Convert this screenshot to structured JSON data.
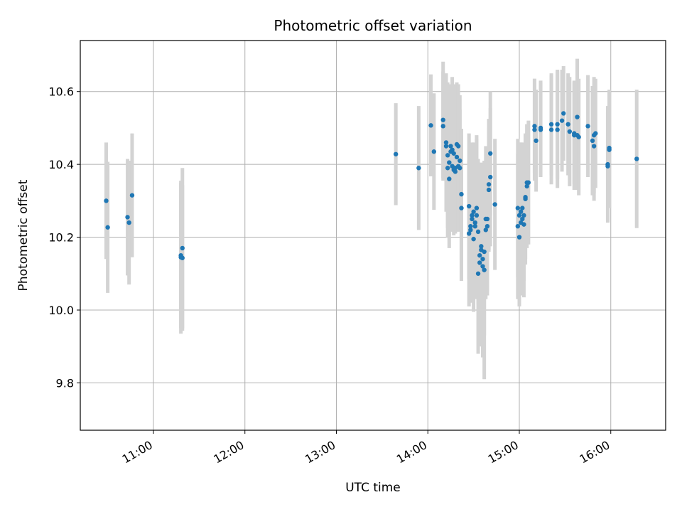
{
  "chart_data": {
    "type": "scatter",
    "title": "Photometric offset variation",
    "xlabel": "UTC time",
    "ylabel": "Photometric offset",
    "xlim": [
      "10:12",
      "16:36"
    ],
    "ylim": [
      9.67,
      10.74
    ],
    "x_ticks": [
      "11:00",
      "12:00",
      "13:00",
      "14:00",
      "15:00",
      "16:00"
    ],
    "y_ticks": [
      9.8,
      10.0,
      10.2,
      10.4,
      10.6
    ],
    "grid": true,
    "legend": "none",
    "colors": {
      "point": "#1f77b4",
      "errorbar": "#d3d3d3",
      "grid": "#b0b0b0"
    },
    "points": [
      {
        "x": "10:29",
        "y": 10.3,
        "err": 0.16
      },
      {
        "x": "10:30",
        "y": 10.227,
        "err": 0.18
      },
      {
        "x": "10:43",
        "y": 10.255,
        "err": 0.16
      },
      {
        "x": "10:44",
        "y": 10.24,
        "err": 0.17
      },
      {
        "x": "10:46",
        "y": 10.315,
        "err": 0.17
      },
      {
        "x": "11:18",
        "y": 10.15,
        "err": 0.2
      },
      {
        "x": "11:18",
        "y": 10.145,
        "err": 0.21
      },
      {
        "x": "11:19",
        "y": 10.17,
        "err": 0.22
      },
      {
        "x": "11:19",
        "y": 10.143,
        "err": 0.2
      },
      {
        "x": "13:39",
        "y": 10.428,
        "err": 0.14
      },
      {
        "x": "13:54",
        "y": 10.39,
        "err": 0.17
      },
      {
        "x": "14:02",
        "y": 10.507,
        "err": 0.14
      },
      {
        "x": "14:04",
        "y": 10.435,
        "err": 0.16
      },
      {
        "x": "14:10",
        "y": 10.522,
        "err": 0.16
      },
      {
        "x": "14:10",
        "y": 10.505,
        "err": 0.15
      },
      {
        "x": "14:12",
        "y": 10.46,
        "err": 0.19
      },
      {
        "x": "14:12",
        "y": 10.45,
        "err": 0.17
      },
      {
        "x": "14:13",
        "y": 10.425,
        "err": 0.2
      },
      {
        "x": "14:13",
        "y": 10.39,
        "err": 0.19
      },
      {
        "x": "14:14",
        "y": 10.36,
        "err": 0.19
      },
      {
        "x": "14:14",
        "y": 10.405,
        "err": 0.2
      },
      {
        "x": "14:15",
        "y": 10.435,
        "err": 0.18
      },
      {
        "x": "14:15",
        "y": 10.45,
        "err": 0.17
      },
      {
        "x": "14:16",
        "y": 10.44,
        "err": 0.2
      },
      {
        "x": "14:16",
        "y": 10.395,
        "err": 0.18
      },
      {
        "x": "14:17",
        "y": 10.385,
        "err": 0.18
      },
      {
        "x": "14:17",
        "y": 10.43,
        "err": 0.19
      },
      {
        "x": "14:18",
        "y": 10.38,
        "err": 0.17
      },
      {
        "x": "14:18",
        "y": 10.39,
        "err": 0.16
      },
      {
        "x": "14:19",
        "y": 10.455,
        "err": 0.17
      },
      {
        "x": "14:19",
        "y": 10.42,
        "err": 0.17
      },
      {
        "x": "14:20",
        "y": 10.395,
        "err": 0.18
      },
      {
        "x": "14:20",
        "y": 10.45,
        "err": 0.17
      },
      {
        "x": "14:21",
        "y": 10.39,
        "err": 0.16
      },
      {
        "x": "14:21",
        "y": 10.41,
        "err": 0.18
      },
      {
        "x": "14:22",
        "y": 10.318,
        "err": 0.18
      },
      {
        "x": "14:22",
        "y": 10.28,
        "err": 0.2
      },
      {
        "x": "14:27",
        "y": 10.21,
        "err": 0.2
      },
      {
        "x": "14:27",
        "y": 10.285,
        "err": 0.2
      },
      {
        "x": "14:28",
        "y": 10.22,
        "err": 0.2
      },
      {
        "x": "14:28",
        "y": 10.23,
        "err": 0.19
      },
      {
        "x": "14:29",
        "y": 10.26,
        "err": 0.2
      },
      {
        "x": "14:29",
        "y": 10.25,
        "err": 0.19
      },
      {
        "x": "14:30",
        "y": 10.27,
        "err": 0.19
      },
      {
        "x": "14:30",
        "y": 10.195,
        "err": 0.2
      },
      {
        "x": "14:31",
        "y": 10.24,
        "err": 0.19
      },
      {
        "x": "14:31",
        "y": 10.23,
        "err": 0.2
      },
      {
        "x": "14:32",
        "y": 10.28,
        "err": 0.2
      },
      {
        "x": "14:32",
        "y": 10.26,
        "err": 0.21
      },
      {
        "x": "14:33",
        "y": 10.215,
        "err": 0.2
      },
      {
        "x": "14:33",
        "y": 10.1,
        "err": 0.22
      },
      {
        "x": "14:34",
        "y": 10.15,
        "err": 0.2
      },
      {
        "x": "14:34",
        "y": 10.13,
        "err": 0.23
      },
      {
        "x": "14:35",
        "y": 10.175,
        "err": 0.21
      },
      {
        "x": "14:35",
        "y": 10.165,
        "err": 0.24
      },
      {
        "x": "14:36",
        "y": 10.12,
        "err": 0.25
      },
      {
        "x": "14:36",
        "y": 10.14,
        "err": 0.22
      },
      {
        "x": "14:37",
        "y": 10.11,
        "err": 0.3
      },
      {
        "x": "14:37",
        "y": 10.16,
        "err": 0.23
      },
      {
        "x": "14:38",
        "y": 10.22,
        "err": 0.19
      },
      {
        "x": "14:38",
        "y": 10.25,
        "err": 0.2
      },
      {
        "x": "14:39",
        "y": 10.23,
        "err": 0.19
      },
      {
        "x": "14:39",
        "y": 10.25,
        "err": 0.2
      },
      {
        "x": "14:40",
        "y": 10.33,
        "err": 0.17
      },
      {
        "x": "14:40",
        "y": 10.345,
        "err": 0.18
      },
      {
        "x": "14:41",
        "y": 10.365,
        "err": 0.19
      },
      {
        "x": "14:41",
        "y": 10.43,
        "err": 0.17
      },
      {
        "x": "14:44",
        "y": 10.29,
        "err": 0.18
      },
      {
        "x": "14:59",
        "y": 10.28,
        "err": 0.19
      },
      {
        "x": "14:59",
        "y": 10.23,
        "err": 0.2
      },
      {
        "x": "15:00",
        "y": 10.2,
        "err": 0.19
      },
      {
        "x": "15:00",
        "y": 10.26,
        "err": 0.2
      },
      {
        "x": "15:01",
        "y": 10.27,
        "err": 0.19
      },
      {
        "x": "15:01",
        "y": 10.24,
        "err": 0.2
      },
      {
        "x": "15:02",
        "y": 10.28,
        "err": 0.18
      },
      {
        "x": "15:02",
        "y": 10.25,
        "err": 0.19
      },
      {
        "x": "15:03",
        "y": 10.26,
        "err": 0.18
      },
      {
        "x": "15:03",
        "y": 10.235,
        "err": 0.2
      },
      {
        "x": "15:04",
        "y": 10.305,
        "err": 0.18
      },
      {
        "x": "15:04",
        "y": 10.31,
        "err": 0.17
      },
      {
        "x": "15:05",
        "y": 10.34,
        "err": 0.17
      },
      {
        "x": "15:05",
        "y": 10.35,
        "err": 0.16
      },
      {
        "x": "15:06",
        "y": 10.35,
        "err": 0.17
      },
      {
        "x": "15:10",
        "y": 10.505,
        "err": 0.13
      },
      {
        "x": "15:10",
        "y": 10.495,
        "err": 0.14
      },
      {
        "x": "15:11",
        "y": 10.465,
        "err": 0.14
      },
      {
        "x": "15:14",
        "y": 10.5,
        "err": 0.13
      },
      {
        "x": "15:14",
        "y": 10.495,
        "err": 0.13
      },
      {
        "x": "15:21",
        "y": 10.51,
        "err": 0.14
      },
      {
        "x": "15:21",
        "y": 10.495,
        "err": 0.15
      },
      {
        "x": "15:25",
        "y": 10.51,
        "err": 0.15
      },
      {
        "x": "15:25",
        "y": 10.495,
        "err": 0.16
      },
      {
        "x": "15:28",
        "y": 10.52,
        "err": 0.14
      },
      {
        "x": "15:29",
        "y": 10.54,
        "err": 0.13
      },
      {
        "x": "15:32",
        "y": 10.51,
        "err": 0.14
      },
      {
        "x": "15:33",
        "y": 10.49,
        "err": 0.15
      },
      {
        "x": "15:36",
        "y": 10.48,
        "err": 0.15
      },
      {
        "x": "15:36",
        "y": 10.485,
        "err": 0.14
      },
      {
        "x": "15:38",
        "y": 10.53,
        "err": 0.16
      },
      {
        "x": "15:38",
        "y": 10.48,
        "err": 0.15
      },
      {
        "x": "15:39",
        "y": 10.475,
        "err": 0.16
      },
      {
        "x": "15:45",
        "y": 10.505,
        "err": 0.14
      },
      {
        "x": "15:48",
        "y": 10.465,
        "err": 0.15
      },
      {
        "x": "15:49",
        "y": 10.45,
        "err": 0.15
      },
      {
        "x": "15:49",
        "y": 10.48,
        "err": 0.16
      },
      {
        "x": "15:50",
        "y": 10.485,
        "err": 0.15
      },
      {
        "x": "15:58",
        "y": 10.4,
        "err": 0.16
      },
      {
        "x": "15:58",
        "y": 10.395,
        "err": 0.15
      },
      {
        "x": "15:59",
        "y": 10.445,
        "err": 0.16
      },
      {
        "x": "15:59",
        "y": 10.44,
        "err": 0.16
      },
      {
        "x": "16:17",
        "y": 10.415,
        "err": 0.19
      }
    ]
  }
}
